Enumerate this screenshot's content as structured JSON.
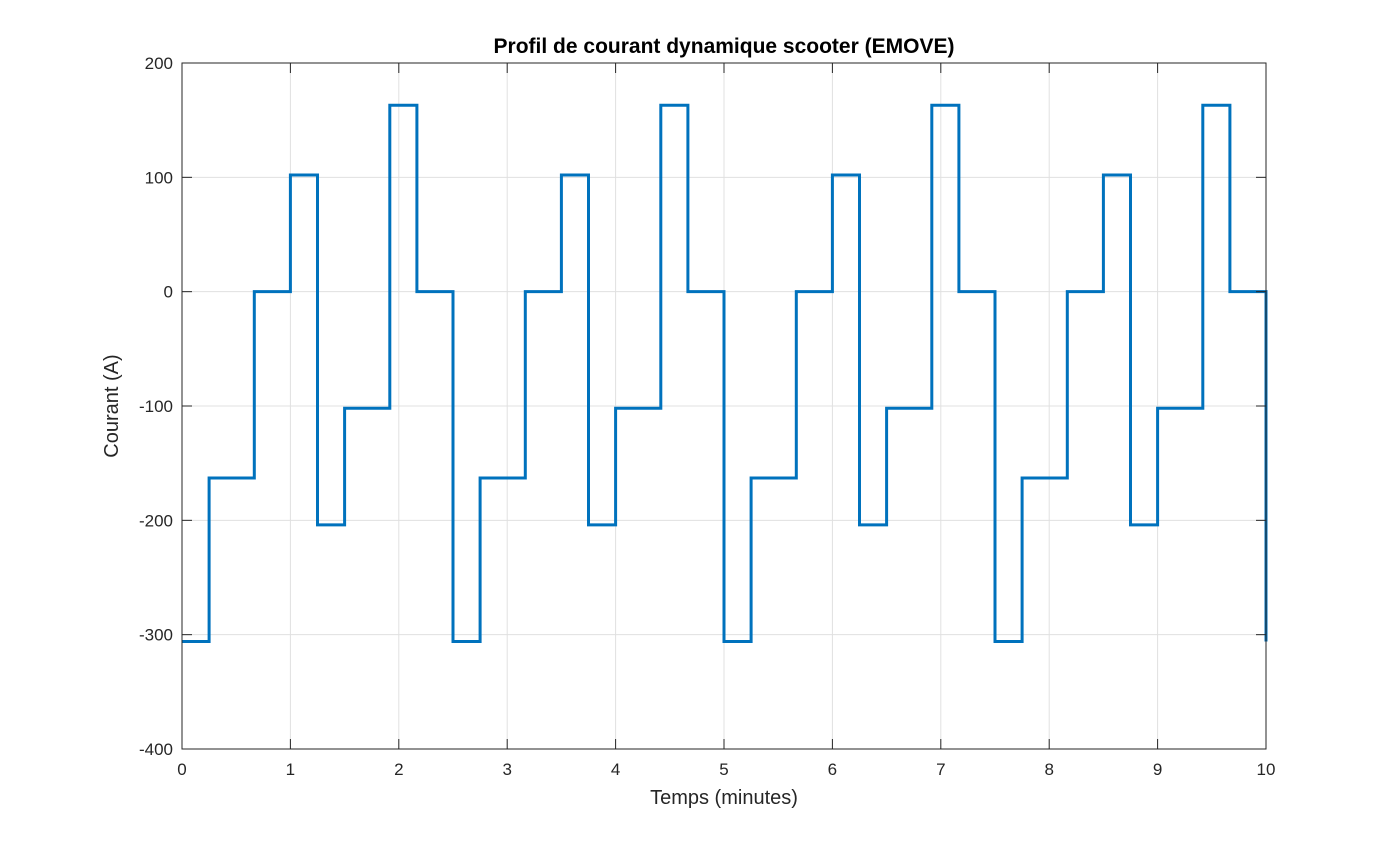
{
  "chart_data": {
    "type": "line",
    "title": "Profil de courant dynamique scooter (EMOVE)",
    "xlabel": "Temps (minutes)",
    "ylabel": "Courant (A)",
    "xlim": [
      0,
      10
    ],
    "ylim": [
      -400,
      200
    ],
    "xticks": [
      0,
      1,
      2,
      3,
      4,
      5,
      6,
      7,
      8,
      9,
      10
    ],
    "yticks": [
      -400,
      -300,
      -200,
      -100,
      0,
      100,
      200
    ],
    "grid": true,
    "box": true,
    "step": true,
    "series": [
      {
        "color": "#0072BD",
        "x": [
          0,
          0.25,
          0.667,
          1.0,
          1.25,
          1.5,
          1.917,
          2.167,
          2.5,
          2.75,
          3.167,
          3.5,
          3.75,
          4.0,
          4.417,
          4.667,
          5.0,
          5.25,
          5.667,
          6.0,
          6.25,
          6.5,
          6.917,
          7.167,
          7.5,
          7.75,
          8.167,
          8.5,
          8.75,
          9.0,
          9.417,
          9.667,
          10.0
        ],
        "values": [
          -306,
          -163,
          0,
          102,
          -204,
          -102,
          163,
          0,
          -306,
          -163,
          0,
          102,
          -204,
          -102,
          163,
          0,
          -306,
          -163,
          0,
          102,
          -204,
          -102,
          163,
          0,
          -306,
          -163,
          0,
          102,
          -204,
          -102,
          163,
          0,
          -306
        ]
      }
    ]
  }
}
